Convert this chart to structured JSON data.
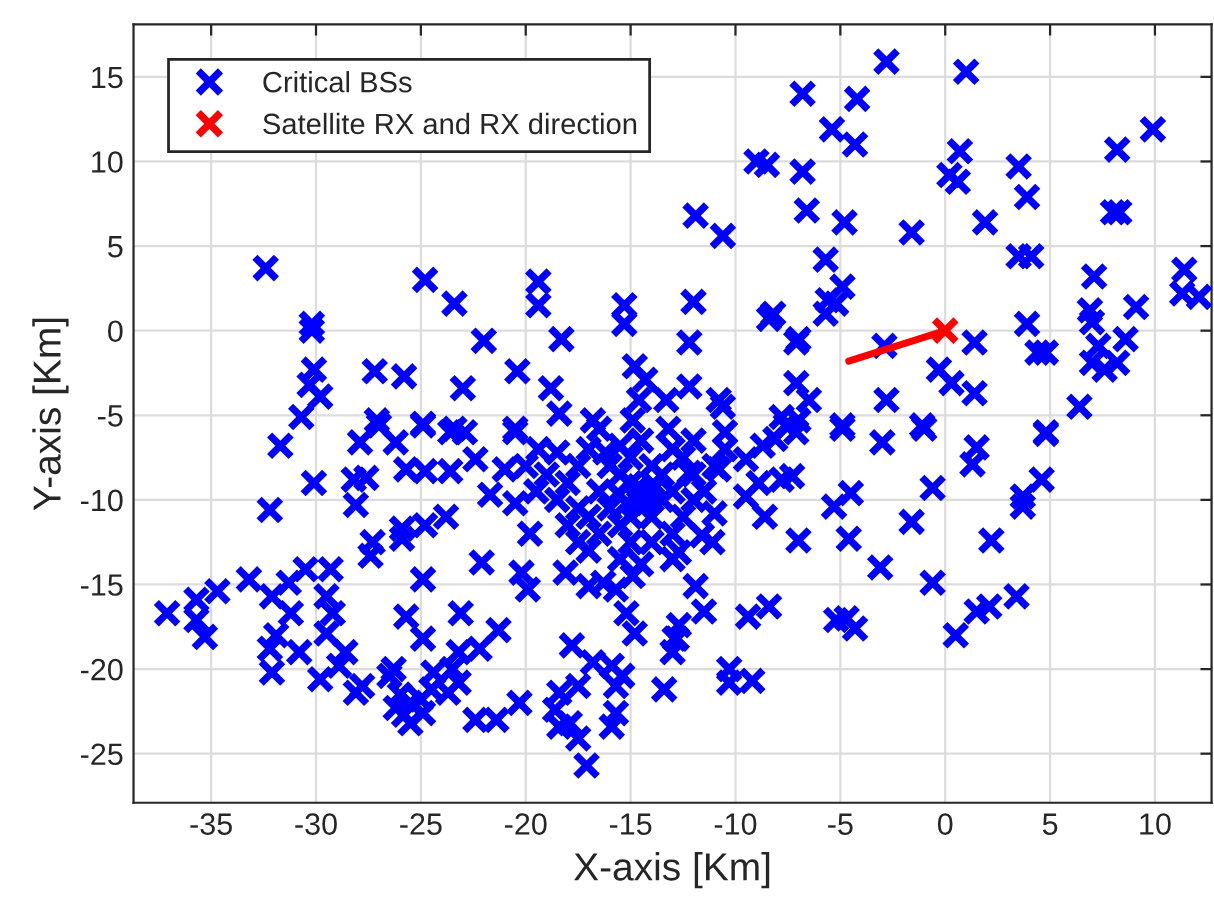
{
  "chart_data": {
    "type": "scatter",
    "xlabel": "X-axis [Km]",
    "ylabel": "Y-axis [Km]",
    "xlim": [
      -38.7,
      12.7
    ],
    "ylim": [
      -27.9,
      18.1
    ],
    "xticks": [
      -35,
      -30,
      -25,
      -20,
      -15,
      -10,
      -5,
      0,
      5,
      10
    ],
    "yticks": [
      -25,
      -20,
      -15,
      -10,
      -5,
      0,
      5,
      10,
      15
    ],
    "grid": true,
    "legend": "top left",
    "marker": "cross",
    "series": [
      {
        "name": "Critical BSs",
        "color": "#0000ff",
        "x": [
          -32.4,
          -24.8,
          -23.4,
          -30.2,
          -30.2,
          -22.0,
          -19.4,
          -19.4,
          -18.3,
          -15.3,
          -15.3,
          -30.1,
          -30.3,
          -29.8,
          -30.7,
          -27.2,
          -25.8,
          -23.0,
          -20.4,
          -18.8,
          -18.4,
          -16.8,
          -14.8,
          -14.3,
          -14.6,
          -13.3,
          -14.9,
          -27.1,
          -24.9,
          -23.4,
          -20.5,
          -2.8,
          1.0,
          -6.8,
          -4.2,
          -5.4,
          -4.3,
          0.7,
          0.2,
          0.6,
          -9.0,
          -8.5,
          -6.8,
          -6.6,
          -4.8,
          -1.6,
          1.9,
          -11.9,
          -10.6,
          3.5,
          3.9,
          8.2,
          9.9,
          8.0,
          8.3,
          3.5,
          4.1,
          -5.7,
          -12.0,
          -12.2,
          -12.2,
          -8.2,
          -8.4,
          -7.0,
          -7.1,
          -5.6,
          -4.9,
          -5.7,
          -5.2,
          -2.9,
          -0.3,
          0.3,
          1.4,
          -2.8,
          1.4,
          -7.1,
          -6.5,
          -10.8,
          -10.6,
          -7.8,
          -7.0,
          -4.9,
          -1.1,
          3.9,
          4.4,
          4.8,
          7.1,
          6.9,
          7.0,
          9.1,
          8.6,
          7.3,
          7.0,
          7.6,
          8.2,
          6.4,
          4.8,
          11.4,
          11.3,
          12.1,
          -31.7,
          -30.1,
          -28.2,
          -27.6,
          -28.1,
          -32.2,
          -25.7,
          -24.8,
          -23.6,
          -27.9,
          -27.0,
          -26.2,
          -24.9,
          -23.6,
          -22.9,
          -22.4,
          -21.7,
          -20.5,
          -19.8,
          -22.1,
          -20.2,
          -19.9,
          -27.3,
          -27.4,
          -25.9,
          -25.9,
          -24.8,
          -23.8,
          -24.9,
          -30.5,
          -29.3,
          -33.2,
          -32.1,
          -31.3,
          -31.2,
          -34.7,
          -35.7,
          -35.7,
          -37.1,
          -35.3,
          -29.5,
          -29.2,
          -29.5,
          -28.6,
          -31.9,
          -32.2,
          -30.8,
          -32.1,
          -29.8,
          -28.9,
          -28.1,
          -27.8,
          -26.3,
          -26.5,
          -25.7,
          -24.9,
          -23.1,
          -21.3,
          -22.2,
          -23.2,
          -24.4,
          -23.5,
          -23.2,
          -23.7,
          -26.0,
          -25.5,
          -25.0,
          -25.8,
          -24.9,
          -25.5,
          -26.2,
          -24.5,
          -22.4,
          -21.4,
          -20.3,
          -17.8,
          -16.8,
          -15.9,
          -15.4,
          -18.4,
          -17.5,
          -18.6,
          -17.9,
          -17.5,
          -17.1,
          -18.4,
          -15.7,
          -15.9,
          -15.7,
          -13.4,
          -15.2,
          -14.8,
          -12.9,
          -13.0,
          -16.3,
          -15.7,
          -17.0,
          -18.1,
          -17.5,
          -14.9,
          -19.4,
          -4.9,
          -3.0,
          -1.0,
          1.5,
          1.3,
          4.8,
          4.6,
          3.7,
          3.7,
          -0.6,
          -1.6,
          2.2,
          -5.3,
          -4.5,
          -4.6,
          -7.0,
          -3.1,
          -0.6,
          3.4,
          2.1,
          1.5,
          0.5,
          -5.2,
          -4.7,
          -4.3,
          -8.4,
          -9.4,
          -10.3,
          -10.3,
          -9.2,
          -11.9,
          -11.5,
          -12.7,
          -12.8,
          -9.5,
          -8.6,
          -8.9,
          -7.8,
          -7.3,
          -11.6,
          -11.1,
          -12.7,
          -7.6,
          -7.1,
          -8.7,
          -8.1,
          -10.5,
          -9.5,
          -10.8,
          -12.2,
          -16.0,
          -15.5,
          -15.0,
          -14.5,
          -14.0,
          -14.5,
          -15.0,
          -15.5,
          -14.0,
          -13.5,
          -13.0,
          -13.5,
          -14.0,
          -15.0,
          -16.5,
          -16.0,
          -17.0,
          -16.5,
          -15.0,
          -14.0,
          -13.0,
          -12.5,
          -12.0,
          -12.0,
          -12.5,
          -13.0,
          -14.5,
          -15.5,
          -17.5,
          -18.0,
          -18.5,
          -17.5,
          -19.0,
          -20.0,
          -19.5,
          -21.0,
          -20.5,
          -18.0,
          -17.0,
          -15.5,
          -14.5,
          -13.0,
          -11.5,
          -11.0,
          -10.5,
          -11.0,
          -14.8,
          -14.2,
          -15.2,
          -14.6,
          -13.8,
          -15.6,
          -16.2,
          -17.0,
          -12.0,
          -13.2,
          -16.5,
          -18.5
        ],
        "values": [
          3.7,
          3.0,
          1.6,
          0.4,
          0.0,
          -0.6,
          2.9,
          1.5,
          -0.5,
          1.5,
          0.4,
          -2.3,
          -3.2,
          -3.9,
          -5.1,
          -2.4,
          -2.7,
          -3.4,
          -2.4,
          -3.4,
          -4.9,
          -5.3,
          -2.1,
          -2.9,
          -4.1,
          -4.1,
          -5.3,
          -5.3,
          -5.5,
          -5.8,
          -5.8,
          15.9,
          15.3,
          14.0,
          13.7,
          11.9,
          11.0,
          10.6,
          9.2,
          8.8,
          10.0,
          9.8,
          9.4,
          7.1,
          6.4,
          5.8,
          6.4,
          6.8,
          5.6,
          9.7,
          7.9,
          10.7,
          11.9,
          7.0,
          7.0,
          4.4,
          4.4,
          4.2,
          1.7,
          -0.7,
          -3.3,
          1.0,
          0.7,
          -0.5,
          -0.7,
          1.8,
          2.6,
          1.0,
          1.6,
          -0.9,
          -2.3,
          -3.1,
          -0.7,
          -4.1,
          -3.7,
          -3.1,
          -4.1,
          -4.1,
          -4.5,
          -5.1,
          -5.3,
          -5.6,
          -5.6,
          0.4,
          -1.3,
          -1.3,
          3.2,
          1.2,
          0.5,
          1.4,
          -0.5,
          -0.9,
          -1.9,
          -2.3,
          -1.9,
          -4.5,
          -6.0,
          3.6,
          2.2,
          2.0,
          -6.8,
          -9.0,
          -8.8,
          -8.7,
          -10.3,
          -10.6,
          -8.2,
          -8.3,
          -8.3,
          -6.6,
          -5.6,
          -6.6,
          -5.6,
          -6.0,
          -6.0,
          -7.6,
          -9.7,
          -6.0,
          -12.0,
          -13.7,
          -14.3,
          -15.3,
          -12.5,
          -13.3,
          -11.7,
          -12.3,
          -11.5,
          -11.0,
          -14.7,
          -14.1,
          -14.1,
          -14.7,
          -15.7,
          -14.9,
          -16.7,
          -15.4,
          -15.9,
          -17.1,
          -16.7,
          -18.1,
          -15.7,
          -16.7,
          -17.9,
          -19.0,
          -18.0,
          -18.8,
          -19.0,
          -20.2,
          -20.6,
          -19.8,
          -21.4,
          -21.0,
          -20.0,
          -20.4,
          -16.9,
          -18.2,
          -16.7,
          -17.7,
          -18.8,
          -19.0,
          -20.2,
          -20.0,
          -20.8,
          -21.4,
          -21.5,
          -22.0,
          -21.8,
          -22.7,
          -22.6,
          -23.2,
          -22.3,
          -21.2,
          -23.0,
          -23.0,
          -22.0,
          -18.6,
          -19.6,
          -19.8,
          -20.4,
          -21.4,
          -21.0,
          -22.4,
          -23.2,
          -24.1,
          -25.7,
          -23.4,
          -22.6,
          -23.4,
          -21.0,
          -21.2,
          -16.7,
          -17.9,
          -18.2,
          -19.0,
          -14.9,
          -15.3,
          -15.1,
          -14.3,
          -12.5,
          -14.5,
          -7.0,
          -5.8,
          -6.6,
          -5.8,
          -6.9,
          -7.9,
          -6.1,
          -8.8,
          -9.8,
          -10.4,
          -9.3,
          -11.3,
          -12.4,
          -10.4,
          -9.6,
          -12.3,
          -12.4,
          -14.0,
          -14.9,
          -15.7,
          -16.3,
          -16.6,
          -18.0,
          -17.1,
          -17.0,
          -17.6,
          -16.3,
          -16.9,
          -20.0,
          -20.8,
          -20.7,
          -15.1,
          -16.6,
          -17.4,
          -18.2,
          -9.8,
          -11.0,
          -9.0,
          -8.8,
          -8.6,
          -12.1,
          -12.5,
          -13.1,
          -5.6,
          -6.0,
          -6.8,
          -6.4,
          -6.0,
          -7.6,
          -8.2,
          -8.4,
          -8.0,
          -8.5,
          -9.0,
          -9.5,
          -10.0,
          -10.5,
          -11.0,
          -11.5,
          -11.0,
          -10.0,
          -9.5,
          -8.5,
          -8.0,
          -7.5,
          -9.5,
          -10.5,
          -11.0,
          -12.0,
          -12.5,
          -12.5,
          -12.0,
          -11.0,
          -10.0,
          -8.5,
          -7.5,
          -7.0,
          -6.5,
          -6.8,
          -8.0,
          -9.0,
          -10.0,
          -10.5,
          -8.5,
          -8.0,
          -9.5,
          -8.2,
          -10.2,
          -11.5,
          -13.0,
          -13.5,
          -13.8,
          -13.5,
          -9.5,
          -8.0,
          -7.0,
          -10.8,
          -9.8,
          -10.2,
          -10.2,
          -9.2,
          -9.2,
          -9.6,
          -7.2,
          -7.0,
          -6.5,
          -5.8,
          -5.8,
          -7.2
        ]
      },
      {
        "name": "Satellite RX and RX direction",
        "color": "#ff0000",
        "x": [
          0.0
        ],
        "values": [
          0.0
        ]
      },
      {
        "color": "#ff0000",
        "type": "line",
        "marker": "none",
        "x": [
          0.0,
          -4.6
        ],
        "values": [
          0.0,
          -1.8
        ]
      }
    ]
  }
}
